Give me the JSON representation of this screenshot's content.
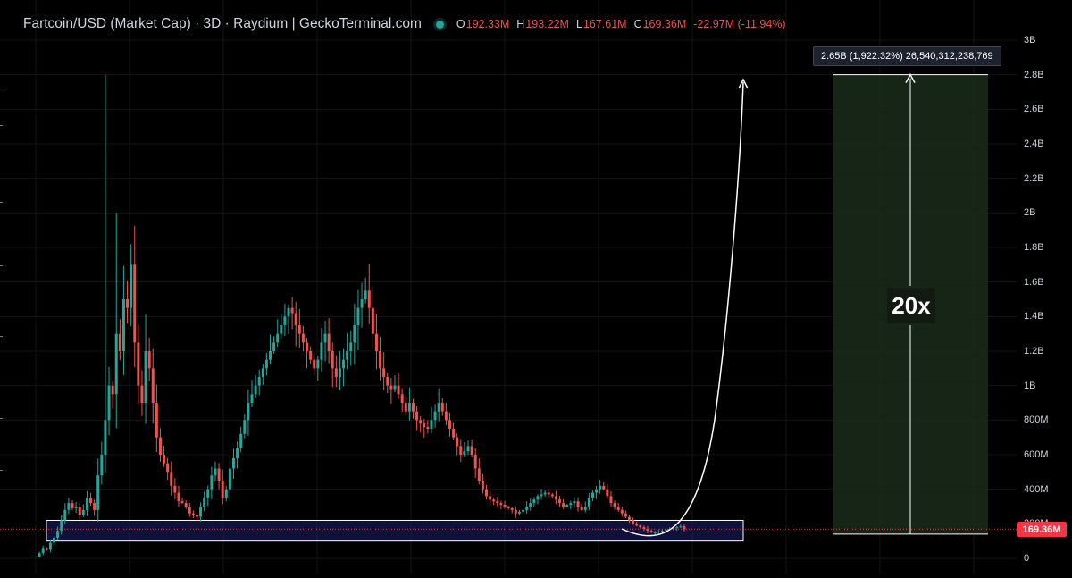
{
  "header": {
    "title": "Fartcoin/USD (Market Cap) · 3D · Raydium | GeckoTerminal.com",
    "open_key": "O",
    "open": "192.33M",
    "high_key": "H",
    "high": "193.22M",
    "low_key": "L",
    "low": "167.61M",
    "close_key": "C",
    "close": "169.36M",
    "change": "-22.97M (-11.94%)"
  },
  "overlays": {
    "measure_text": "2.65B (1,922.32%) 26,540,312,238,769",
    "multiplier_label": "20x",
    "current_price_tag": "169.36M"
  },
  "colors": {
    "up": "#26a69a",
    "down": "#ef5350",
    "background": "#000000",
    "support_box": "#1c1f6b",
    "target_zone": "#1a2b1a"
  },
  "chart_data": {
    "type": "candlestick",
    "title": "Fartcoin/USD (Market Cap) · 3D · Raydium | GeckoTerminal.com",
    "ylim": [
      0,
      3000000000
    ],
    "y_ticks": [
      "0",
      "200M",
      "400M",
      "600M",
      "800M",
      "1B",
      "1.2B",
      "1.4B",
      "1.6B",
      "1.8B",
      "2B",
      "2.2B",
      "2.4B",
      "2.6B",
      "2.8B",
      "3B"
    ],
    "y_tick_values": [
      0,
      200000000,
      400000000,
      600000000,
      800000000,
      1000000000,
      1200000000,
      1400000000,
      1600000000,
      1800000000,
      2000000000,
      2200000000,
      2400000000,
      2600000000,
      2800000000,
      3000000000
    ],
    "grid": true,
    "close_trajectory_millions": [
      10,
      30,
      60,
      50,
      90,
      120,
      160,
      220,
      280,
      320,
      290,
      300,
      250,
      280,
      350,
      320,
      280,
      480,
      600,
      800,
      1000,
      950,
      1300,
      1200,
      1500,
      1450,
      1700,
      1250,
      1000,
      900,
      1200,
      1100,
      900,
      700,
      600,
      550,
      500,
      420,
      380,
      330,
      320,
      300,
      260,
      250,
      240,
      300,
      350,
      400,
      480,
      520,
      450,
      350,
      400,
      520,
      580,
      640,
      720,
      800,
      900,
      950,
      1000,
      1050,
      1100,
      1150,
      1200,
      1250,
      1300,
      1350,
      1400,
      1450,
      1420,
      1350,
      1300,
      1250,
      1200,
      1150,
      1100,
      1150,
      1250,
      1300,
      1200,
      1100,
      1050,
      1100,
      1150,
      1200,
      1250,
      1350,
      1450,
      1500,
      1550,
      1450,
      1300,
      1200,
      1100,
      1050,
      1000,
      980,
      1000,
      950,
      900,
      850,
      900,
      850,
      800,
      780,
      760,
      750,
      800,
      850,
      900,
      850,
      800,
      750,
      700,
      650,
      600,
      620,
      650,
      600,
      520,
      450,
      400,
      360,
      340,
      330,
      320,
      310,
      300,
      290,
      280,
      260,
      270,
      280,
      300,
      320,
      340,
      360,
      370,
      380,
      370,
      360,
      340,
      320,
      300,
      310,
      320,
      330,
      300,
      280,
      300,
      350,
      380,
      400,
      420,
      400,
      360,
      320,
      300,
      280,
      260,
      240,
      220,
      200,
      190,
      180,
      170,
      160,
      150,
      150,
      155,
      160,
      165,
      170,
      175,
      180,
      185,
      170
    ],
    "current_value": 169360000,
    "support_zone": [
      100000000,
      220000000
    ],
    "target_value": 2800000000,
    "projection_multiple": 20
  }
}
